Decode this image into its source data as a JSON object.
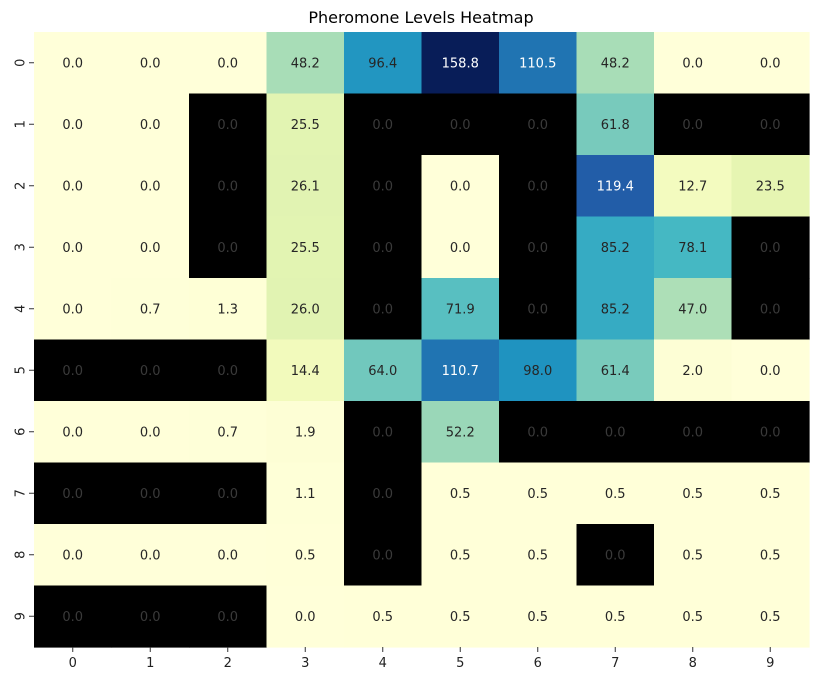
{
  "chart_data": {
    "type": "heatmap",
    "title": "Pheromone Levels Heatmap",
    "xlabel": "",
    "ylabel": "",
    "x_categories": [
      "0",
      "1",
      "2",
      "3",
      "4",
      "5",
      "6",
      "7",
      "8",
      "9"
    ],
    "y_categories": [
      "0",
      "1",
      "2",
      "3",
      "4",
      "5",
      "6",
      "7",
      "8",
      "9"
    ],
    "colormap": "YlGnBu",
    "colorbar": false,
    "masked_color": "#000000",
    "annotation_format": ".1f",
    "values": [
      [
        0.0,
        0.0,
        0.0,
        48.2,
        96.4,
        158.8,
        110.5,
        48.2,
        0.0,
        0.0
      ],
      [
        0.0,
        0.0,
        0.0,
        25.5,
        0.0,
        0.0,
        0.0,
        61.8,
        0.0,
        0.0
      ],
      [
        0.0,
        0.0,
        0.0,
        26.1,
        0.0,
        0.0,
        0.0,
        119.4,
        12.7,
        23.5
      ],
      [
        0.0,
        0.0,
        0.0,
        25.5,
        0.0,
        0.0,
        0.0,
        85.2,
        78.1,
        0.0
      ],
      [
        0.0,
        0.7,
        1.3,
        26.0,
        0.0,
        71.9,
        0.0,
        85.2,
        47.0,
        0.0
      ],
      [
        0.0,
        0.0,
        0.0,
        14.4,
        64.0,
        110.7,
        98.0,
        61.4,
        2.0,
        0.0
      ],
      [
        0.0,
        0.0,
        0.7,
        1.9,
        0.0,
        52.2,
        0.0,
        0.0,
        0.0,
        0.0
      ],
      [
        0.0,
        0.0,
        0.0,
        1.1,
        0.0,
        0.5,
        0.5,
        0.5,
        0.5,
        0.5
      ],
      [
        0.0,
        0.0,
        0.0,
        0.5,
        0.0,
        0.5,
        0.5,
        0.0,
        0.5,
        0.5
      ],
      [
        0.0,
        0.0,
        0.0,
        0.0,
        0.5,
        0.5,
        0.5,
        0.5,
        0.5,
        0.5
      ]
    ],
    "masked": [
      [
        0,
        0,
        0,
        0,
        0,
        0,
        0,
        0,
        0,
        0
      ],
      [
        0,
        0,
        1,
        0,
        1,
        1,
        1,
        0,
        1,
        1
      ],
      [
        0,
        0,
        1,
        0,
        1,
        0,
        1,
        0,
        0,
        0
      ],
      [
        0,
        0,
        1,
        0,
        1,
        0,
        1,
        0,
        0,
        1
      ],
      [
        0,
        0,
        0,
        0,
        1,
        0,
        1,
        0,
        0,
        1
      ],
      [
        1,
        1,
        1,
        0,
        0,
        0,
        0,
        0,
        0,
        0
      ],
      [
        0,
        0,
        0,
        0,
        1,
        0,
        1,
        1,
        1,
        1
      ],
      [
        1,
        1,
        1,
        0,
        1,
        0,
        0,
        0,
        0,
        0
      ],
      [
        0,
        0,
        0,
        0,
        1,
        0,
        0,
        1,
        0,
        0
      ],
      [
        1,
        1,
        1,
        0,
        0,
        0,
        0,
        0,
        0,
        0
      ]
    ]
  }
}
